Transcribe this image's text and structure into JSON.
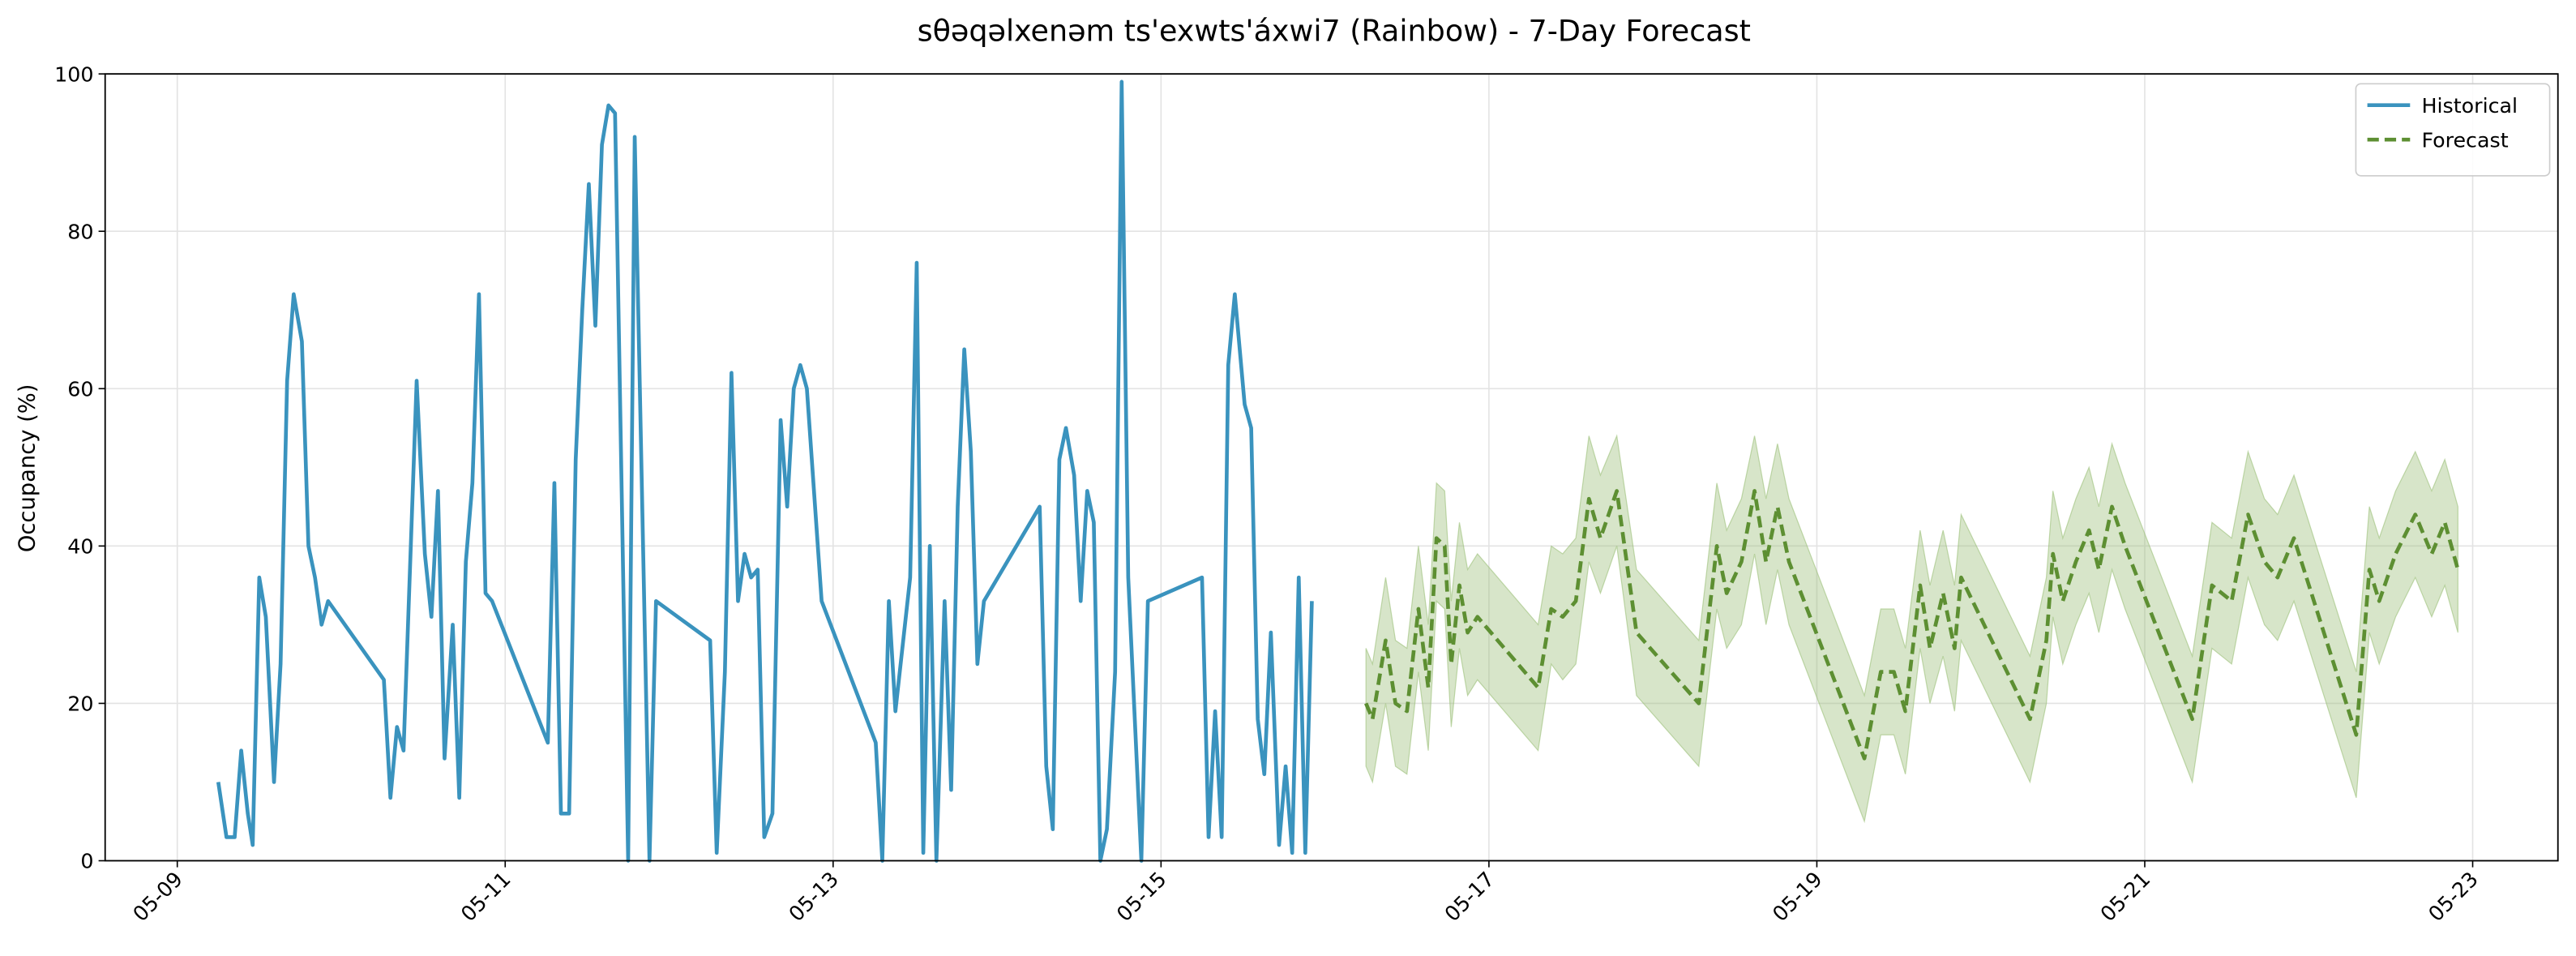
{
  "chart_data": {
    "type": "line",
    "title": "sθəqəlxenəm ts'exwts'áxwi7 (Rainbow) - 7-Day Forecast",
    "y_label": "Occupancy (%)",
    "xlim": [
      8.56,
      23.52
    ],
    "xticks": [
      {
        "value": 9,
        "label": "05-09"
      },
      {
        "value": 11,
        "label": "05-11"
      },
      {
        "value": 13,
        "label": "05-13"
      },
      {
        "value": 15,
        "label": "05-15"
      },
      {
        "value": 17,
        "label": "05-17"
      },
      {
        "value": 19,
        "label": "05-19"
      },
      {
        "value": 21,
        "label": "05-21"
      },
      {
        "value": 23,
        "label": "05-23"
      }
    ],
    "ylim": [
      0,
      100
    ],
    "yticks": [
      0,
      20,
      40,
      60,
      80,
      100
    ],
    "grid": true,
    "legend": "upper right",
    "series": [
      {
        "name": "Historical",
        "color": "#3a93be",
        "style": "solid",
        "x": [
          9.25,
          9.3,
          9.35,
          9.39,
          9.43,
          9.46,
          9.5,
          9.54,
          9.59,
          9.63,
          9.67,
          9.71,
          9.76,
          9.8,
          9.84,
          9.88,
          9.92,
          10.26,
          10.3,
          10.34,
          10.38,
          10.46,
          10.51,
          10.55,
          10.59,
          10.63,
          10.68,
          10.72,
          10.76,
          10.8,
          10.84,
          10.88,
          10.92,
          11.26,
          11.3,
          11.34,
          11.39,
          11.43,
          11.47,
          11.51,
          11.55,
          11.59,
          11.63,
          11.67,
          11.75,
          11.79,
          11.88,
          11.92,
          12.25,
          12.29,
          12.34,
          12.38,
          12.42,
          12.46,
          12.5,
          12.54,
          12.58,
          12.63,
          12.68,
          12.72,
          12.76,
          12.8,
          12.84,
          12.93,
          13.26,
          13.3,
          13.34,
          13.38,
          13.47,
          13.51,
          13.55,
          13.59,
          13.63,
          13.68,
          13.72,
          13.76,
          13.8,
          13.84,
          13.88,
          13.92,
          14.26,
          14.3,
          14.34,
          14.38,
          14.42,
          14.47,
          14.51,
          14.55,
          14.59,
          14.63,
          14.67,
          14.72,
          14.76,
          14.8,
          14.88,
          14.92,
          15.25,
          15.29,
          15.33,
          15.37,
          15.41,
          15.45,
          15.51,
          15.55,
          15.59,
          15.63,
          15.67,
          15.72,
          15.76,
          15.8,
          15.84,
          15.88,
          15.92
        ],
        "values": [
          10,
          3,
          3,
          14,
          6,
          2,
          36,
          31,
          10,
          25,
          61,
          72,
          66,
          40,
          36,
          30,
          33,
          23,
          8,
          17,
          14,
          61,
          39,
          31,
          47,
          13,
          30,
          8,
          38,
          48,
          72,
          34,
          33,
          15,
          48,
          6,
          6,
          51,
          70,
          86,
          68,
          91,
          96,
          95,
          0,
          92,
          0,
          33,
          28,
          1,
          24,
          62,
          33,
          39,
          36,
          37,
          3,
          6,
          56,
          45,
          60,
          63,
          60,
          33,
          15,
          0,
          33,
          19,
          36,
          76,
          1,
          40,
          0,
          33,
          9,
          45,
          65,
          52,
          25,
          33,
          45,
          12,
          4,
          51,
          55,
          49,
          33,
          47,
          43,
          0,
          4,
          24,
          99,
          36,
          0,
          33,
          36,
          3,
          19,
          3,
          63,
          72,
          58,
          55,
          18,
          11,
          29,
          2,
          12,
          1,
          36,
          1,
          33
        ]
      },
      {
        "name": "Forecast",
        "color": "#5d8f32",
        "style": "dashed",
        "band_color": "#9bbf78",
        "x": [
          16.25,
          16.29,
          16.37,
          16.43,
          16.5,
          16.57,
          16.63,
          16.68,
          16.73,
          16.77,
          16.82,
          16.87,
          16.93,
          17.3,
          17.38,
          17.45,
          17.53,
          17.61,
          17.68,
          17.78,
          17.9,
          18.28,
          18.39,
          18.45,
          18.54,
          18.62,
          18.69,
          18.76,
          18.83,
          19.29,
          19.39,
          19.47,
          19.54,
          19.63,
          19.69,
          19.77,
          19.84,
          19.88,
          20.3,
          20.4,
          20.44,
          20.5,
          20.58,
          20.66,
          20.72,
          20.8,
          20.88,
          21.29,
          21.41,
          21.53,
          21.63,
          21.73,
          21.81,
          21.91,
          22.29,
          22.37,
          22.43,
          22.53,
          22.65,
          22.75,
          22.83,
          22.91
        ],
        "values": [
          20,
          18,
          28,
          20,
          19,
          32,
          22,
          41,
          40,
          25,
          35,
          29,
          31,
          22,
          32,
          31,
          33,
          46,
          41,
          47,
          29,
          20,
          40,
          34,
          38,
          47,
          38,
          45,
          38,
          13,
          24,
          24,
          19,
          35,
          27,
          34,
          27,
          36,
          18,
          28,
          39,
          33,
          38,
          42,
          37,
          45,
          40,
          18,
          35,
          33,
          44,
          38,
          36,
          41,
          16,
          37,
          33,
          39,
          44,
          39,
          43,
          37
        ],
        "lower": [
          12,
          10,
          20,
          12,
          11,
          24,
          14,
          33,
          32,
          17,
          27,
          21,
          23,
          14,
          25,
          23,
          25,
          38,
          34,
          40,
          21,
          12,
          32,
          27,
          30,
          39,
          30,
          37,
          30,
          5,
          16,
          16,
          11,
          27,
          20,
          26,
          19,
          28,
          10,
          20,
          31,
          25,
          30,
          34,
          29,
          37,
          32,
          10,
          27,
          25,
          36,
          30,
          28,
          33,
          8,
          29,
          25,
          31,
          36,
          31,
          35,
          29
        ],
        "upper": [
          27,
          25,
          36,
          28,
          27,
          40,
          30,
          48,
          47,
          33,
          43,
          37,
          39,
          30,
          40,
          39,
          41,
          54,
          49,
          54,
          37,
          28,
          48,
          42,
          46,
          54,
          46,
          53,
          46,
          21,
          32,
          32,
          27,
          42,
          35,
          42,
          35,
          44,
          26,
          36,
          47,
          41,
          46,
          50,
          45,
          53,
          48,
          26,
          43,
          41,
          52,
          46,
          44,
          49,
          24,
          45,
          41,
          47,
          52,
          47,
          51,
          45
        ]
      }
    ]
  }
}
